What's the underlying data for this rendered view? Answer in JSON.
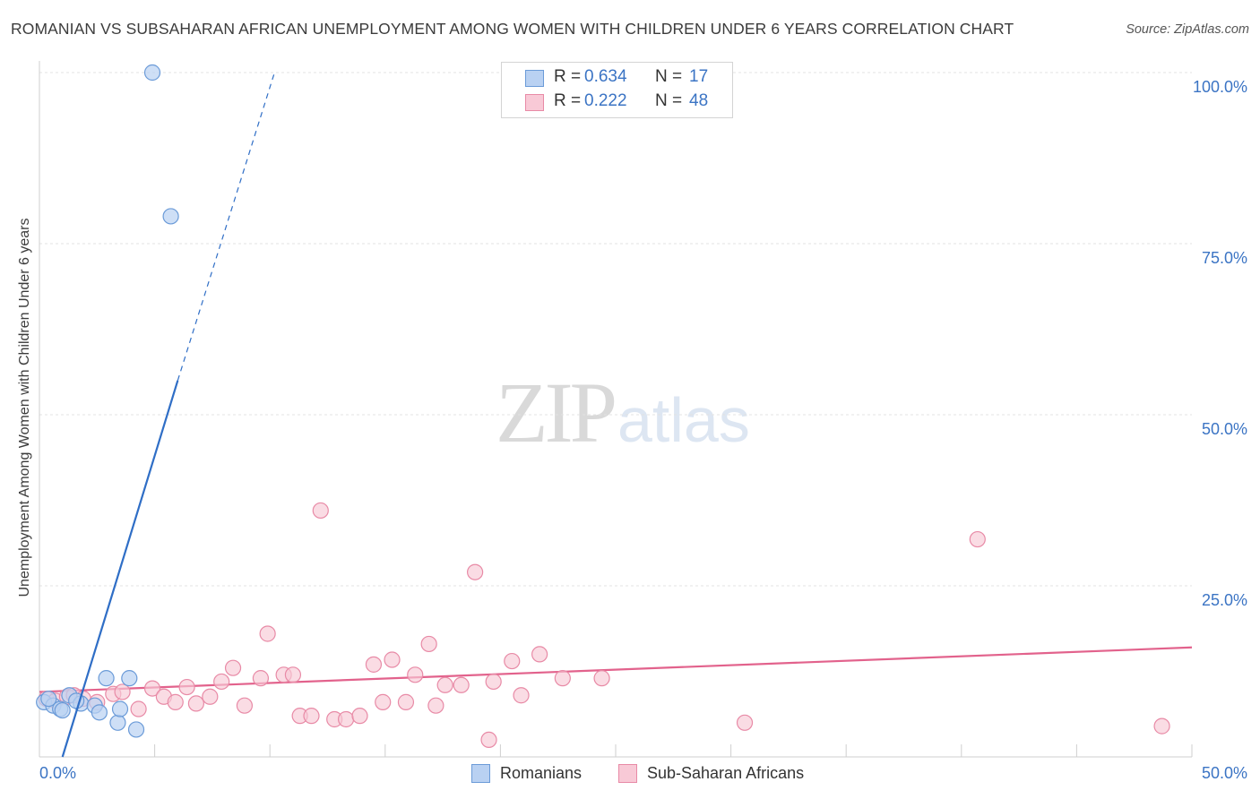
{
  "title": "ROMANIAN VS SUBSAHARAN AFRICAN UNEMPLOYMENT AMONG WOMEN WITH CHILDREN UNDER 6 YEARS CORRELATION CHART",
  "source": "Source: ZipAtlas.com",
  "watermark": {
    "zip": "ZIP",
    "atlas": "atlas"
  },
  "colors": {
    "romanian_fill": "#b9d1f2",
    "romanian_stroke": "#6b9bd8",
    "romanian_line": "#2f6ec6",
    "african_fill": "#f8c9d6",
    "african_stroke": "#e88aa6",
    "african_line": "#e2628c",
    "tick_label": "#3b74c4",
    "grid": "#e3e3e3"
  },
  "legend": {
    "romanians": {
      "r_label": "R =",
      "r_value": "0.634",
      "n_label": "N =",
      "n_value": "17"
    },
    "africans": {
      "r_label": "R =",
      "r_value": "0.222",
      "n_label": "N =",
      "n_value": "48"
    }
  },
  "chart_data": {
    "type": "scatter",
    "title": "ROMANIAN VS SUBSAHARAN AFRICAN UNEMPLOYMENT AMONG WOMEN WITH CHILDREN UNDER 6 YEARS CORRELATION CHART",
    "xlabel": "",
    "ylabel": "Unemployment Among Women with Children Under 6 years",
    "xlim": [
      0,
      50
    ],
    "ylim": [
      0,
      100
    ],
    "x_tick_labels": [
      {
        "value": 0,
        "label": "0.0%"
      },
      {
        "value": 50,
        "label": "50.0%"
      }
    ],
    "y_tick_labels": [
      {
        "value": 25,
        "label": "25.0%"
      },
      {
        "value": 50,
        "label": "50.0%"
      },
      {
        "value": 75,
        "label": "75.0%"
      },
      {
        "value": 100,
        "label": "100.0%"
      }
    ],
    "series": [
      {
        "name": "Romanians",
        "points": [
          [
            0.2,
            8.0
          ],
          [
            0.6,
            7.5
          ],
          [
            0.9,
            7.0
          ],
          [
            1.3,
            9.0
          ],
          [
            1.8,
            7.8
          ],
          [
            2.4,
            7.5
          ],
          [
            2.6,
            6.5
          ],
          [
            2.9,
            11.5
          ],
          [
            3.4,
            5.0
          ],
          [
            3.5,
            7.0
          ],
          [
            3.9,
            11.5
          ],
          [
            4.2,
            4.0
          ],
          [
            4.9,
            100.0
          ],
          [
            5.7,
            79.0
          ],
          [
            1.0,
            6.8
          ],
          [
            0.4,
            8.5
          ],
          [
            1.6,
            8.2
          ]
        ],
        "trend": {
          "x_solid": [
            1.0,
            6.0
          ],
          "y_solid": [
            0.0,
            55.0
          ],
          "x_dashed": [
            6.0,
            10.2
          ],
          "y_dashed": [
            55.0,
            100.0
          ]
        }
      },
      {
        "name": "Sub-Saharan Africans",
        "points": [
          [
            0.3,
            8.5
          ],
          [
            0.7,
            8.2
          ],
          [
            1.2,
            8.8
          ],
          [
            1.5,
            9.0
          ],
          [
            1.9,
            8.5
          ],
          [
            2.5,
            8.0
          ],
          [
            3.2,
            9.2
          ],
          [
            3.6,
            9.5
          ],
          [
            4.3,
            7.0
          ],
          [
            4.9,
            10.0
          ],
          [
            5.4,
            8.8
          ],
          [
            5.9,
            8.0
          ],
          [
            6.4,
            10.2
          ],
          [
            6.8,
            7.8
          ],
          [
            7.4,
            8.8
          ],
          [
            7.9,
            11.0
          ],
          [
            8.4,
            13.0
          ],
          [
            8.9,
            7.5
          ],
          [
            9.6,
            11.5
          ],
          [
            9.9,
            18.0
          ],
          [
            10.6,
            12.0
          ],
          [
            11.0,
            12.0
          ],
          [
            11.3,
            6.0
          ],
          [
            11.8,
            6.0
          ],
          [
            12.2,
            36.0
          ],
          [
            12.8,
            5.5
          ],
          [
            13.3,
            5.5
          ],
          [
            13.9,
            6.0
          ],
          [
            14.5,
            13.5
          ],
          [
            14.9,
            8.0
          ],
          [
            15.3,
            14.2
          ],
          [
            15.9,
            8.0
          ],
          [
            16.3,
            12.0
          ],
          [
            16.9,
            16.5
          ],
          [
            17.2,
            7.5
          ],
          [
            17.6,
            10.5
          ],
          [
            18.3,
            10.5
          ],
          [
            18.9,
            27.0
          ],
          [
            19.5,
            2.5
          ],
          [
            19.7,
            11.0
          ],
          [
            20.5,
            14.0
          ],
          [
            20.9,
            9.0
          ],
          [
            21.7,
            15.0
          ],
          [
            22.7,
            11.5
          ],
          [
            24.4,
            11.5
          ],
          [
            30.6,
            5.0
          ],
          [
            40.7,
            31.8
          ],
          [
            48.7,
            4.5
          ]
        ],
        "trend": {
          "x": [
            0,
            50
          ],
          "y": [
            9.5,
            16.0
          ]
        }
      }
    ]
  }
}
